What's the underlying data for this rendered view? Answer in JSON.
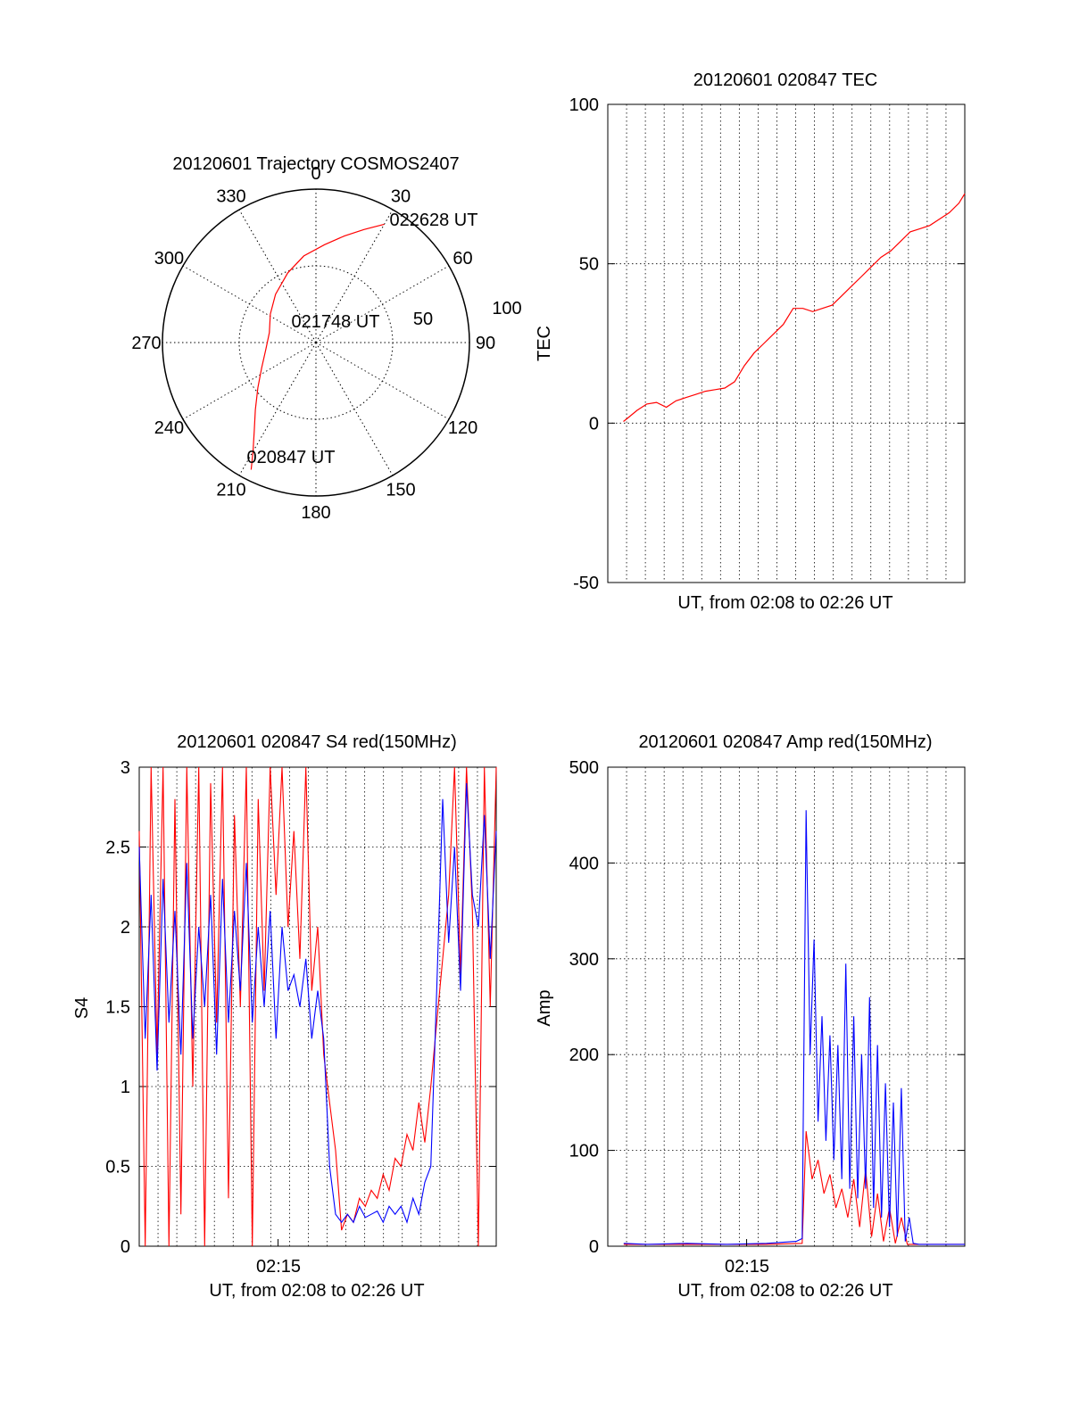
{
  "colors": {
    "red": "#ff0000",
    "blue": "#0000ff",
    "axis": "#000000",
    "grid": "#000000"
  },
  "chart_data": [
    {
      "id": "trajectory",
      "type": "polar",
      "title": "20120601 Trajectory COSMOS2407",
      "azimuth_labels": [
        "0",
        "30",
        "60",
        "90",
        "120",
        "150",
        "180",
        "210",
        "240",
        "270",
        "300",
        "330"
      ],
      "radial_labels": [
        "50",
        "100"
      ],
      "radial_max": 100,
      "start_label": "020847 UT",
      "mid_label": "021748 UT",
      "end_label": "022628 UT",
      "track": [
        {
          "az": 207,
          "r": 93
        },
        {
          "az": 210,
          "r": 82
        },
        {
          "az": 215,
          "r": 70
        },
        {
          "az": 222,
          "r": 59
        },
        {
          "az": 232,
          "r": 48
        },
        {
          "az": 245,
          "r": 39
        },
        {
          "az": 262,
          "r": 33
        },
        {
          "az": 282,
          "r": 31
        },
        {
          "az": 302,
          "r": 35
        },
        {
          "az": 320,
          "r": 41
        },
        {
          "az": 338,
          "r": 49
        },
        {
          "az": 352,
          "r": 57
        },
        {
          "az": 5,
          "r": 64
        },
        {
          "az": 15,
          "r": 72
        },
        {
          "az": 23,
          "r": 80
        },
        {
          "az": 30,
          "r": 89
        }
      ],
      "series_color": "#ff0000"
    },
    {
      "id": "tec",
      "type": "line",
      "title": "20120601 020847 TEC",
      "xlabel": "UT, from 02:08 to 02:26 UT",
      "ylabel": "TEC",
      "ylim": [
        -50,
        100
      ],
      "yticks": [
        "-50",
        "0",
        "50",
        "100"
      ],
      "xlim_min": [
        7.5,
        26
      ],
      "x_min_from_0208": [
        0.8,
        1.0,
        1.5,
        2.0,
        2.5,
        3.0,
        3.5,
        4.0,
        4.5,
        5.0,
        5.5,
        6.0,
        6.5,
        7.0,
        7.5,
        8.0,
        8.5,
        9.0,
        9.5,
        10.0,
        10.5,
        11.0,
        11.5,
        12.0,
        12.5,
        13.0,
        13.5,
        14.0,
        14.5,
        15.0,
        15.5,
        16.0,
        16.5,
        17.0,
        17.5,
        18.0,
        18.3
      ],
      "y": [
        0.5,
        1.5,
        4,
        6,
        6.5,
        5,
        7,
        8,
        9,
        10,
        10.5,
        11,
        13,
        18,
        22,
        25,
        28,
        31,
        36,
        36,
        35,
        36,
        37,
        40,
        43,
        46,
        49,
        52,
        54,
        57,
        60,
        61,
        62,
        64,
        66,
        69,
        72
      ],
      "series_color": "#ff0000"
    },
    {
      "id": "s4",
      "type": "line",
      "title": "20120601 020847 S4 red(150MHz)",
      "xlabel": "UT, from 02:08 to 02:26 UT",
      "ylabel": "S4",
      "ylim": [
        0,
        3
      ],
      "yticks": [
        "0",
        "0.5",
        "1",
        "1.5",
        "2",
        "2.5",
        "3"
      ],
      "xtick_label": "02:15",
      "xtick_min": 7.0,
      "xlim_min": [
        0,
        18
      ],
      "series": [
        {
          "color": "#ff0000",
          "x": [
            0.0,
            0.3,
            0.6,
            0.9,
            1.2,
            1.5,
            1.8,
            2.1,
            2.4,
            2.7,
            3.0,
            3.3,
            3.6,
            3.9,
            4.2,
            4.5,
            4.8,
            5.1,
            5.4,
            5.7,
            6.0,
            6.3,
            6.6,
            6.9,
            7.2,
            7.5,
            7.8,
            8.1,
            8.4,
            8.7,
            9.0,
            9.3,
            9.6,
            9.9,
            10.2,
            10.5,
            10.8,
            11.1,
            11.4,
            11.7,
            12.0,
            12.3,
            12.6,
            12.9,
            13.2,
            13.5,
            13.8,
            14.1,
            14.4,
            14.7,
            15.0,
            15.3,
            15.6,
            15.9,
            16.2,
            16.5,
            16.8,
            17.1,
            17.4,
            17.7,
            18.0
          ],
          "values": [
            2.6,
            0.0,
            3.0,
            1.2,
            3.0,
            0.0,
            2.8,
            0.2,
            3.0,
            1.0,
            3.0,
            0.0,
            2.9,
            1.4,
            3.0,
            0.3,
            2.7,
            1.5,
            3.0,
            0.0,
            2.8,
            1.6,
            3.0,
            2.2,
            3.0,
            2.0,
            2.6,
            1.8,
            3.0,
            1.6,
            2.0,
            1.2,
            0.9,
            0.6,
            0.1,
            0.2,
            0.15,
            0.3,
            0.25,
            0.35,
            0.3,
            0.45,
            0.35,
            0.55,
            0.5,
            0.7,
            0.6,
            0.9,
            0.65,
            1.0,
            1.4,
            1.8,
            2.2,
            3.0,
            1.7,
            3.0,
            2.1,
            0.0,
            3.0,
            1.5,
            3.0
          ]
        },
        {
          "color": "#0000ff",
          "x": [
            0.0,
            0.3,
            0.6,
            0.9,
            1.2,
            1.5,
            1.8,
            2.1,
            2.4,
            2.7,
            3.0,
            3.3,
            3.6,
            3.9,
            4.2,
            4.5,
            4.8,
            5.1,
            5.4,
            5.7,
            6.0,
            6.3,
            6.6,
            6.9,
            7.2,
            7.5,
            7.8,
            8.1,
            8.4,
            8.7,
            9.0,
            9.3,
            9.6,
            9.9,
            10.2,
            10.5,
            10.8,
            11.1,
            11.4,
            11.7,
            12.0,
            12.3,
            12.6,
            12.9,
            13.2,
            13.5,
            13.8,
            14.1,
            14.4,
            14.7,
            15.0,
            15.3,
            15.6,
            15.9,
            16.2,
            16.5,
            16.8,
            17.1,
            17.4,
            17.7,
            18.0
          ],
          "values": [
            2.5,
            1.3,
            2.2,
            1.1,
            2.3,
            1.4,
            2.1,
            1.2,
            2.4,
            1.3,
            2.0,
            1.5,
            2.2,
            1.2,
            2.3,
            1.4,
            2.1,
            1.6,
            2.4,
            1.4,
            2.0,
            1.5,
            2.1,
            1.3,
            2.0,
            1.6,
            1.7,
            1.5,
            1.8,
            1.3,
            1.6,
            1.3,
            0.5,
            0.2,
            0.15,
            0.2,
            0.15,
            0.25,
            0.18,
            0.2,
            0.22,
            0.15,
            0.25,
            0.2,
            0.25,
            0.15,
            0.3,
            0.2,
            0.4,
            0.5,
            1.6,
            2.8,
            1.9,
            2.5,
            1.6,
            2.9,
            2.2,
            2.0,
            2.7,
            1.8,
            2.6
          ]
        }
      ]
    },
    {
      "id": "amp",
      "type": "line",
      "title": "20120601 020847 Amp red(150MHz)",
      "xlabel": "UT, from 02:08 to 02:26 UT",
      "ylabel": "Amp",
      "ylim": [
        0,
        500
      ],
      "yticks": [
        "0",
        "100",
        "200",
        "300",
        "400",
        "500"
      ],
      "xtick_label": "02:15",
      "xtick_min": 7.0,
      "xlim_min": [
        0,
        18
      ],
      "series": [
        {
          "color": "#ff0000",
          "x": [
            0.8,
            2.0,
            4.0,
            6.0,
            8.0,
            9.8,
            10.0,
            10.3,
            10.6,
            10.9,
            11.2,
            11.5,
            11.8,
            12.1,
            12.4,
            12.7,
            13.0,
            13.3,
            13.6,
            13.9,
            14.2,
            14.5,
            14.8,
            15.1,
            15.4,
            15.7,
            16.0,
            17.0,
            18.0
          ],
          "values": [
            2,
            2,
            2,
            2,
            2,
            3,
            120,
            70,
            90,
            55,
            75,
            40,
            60,
            30,
            70,
            20,
            80,
            10,
            55,
            5,
            40,
            3,
            30,
            2,
            2,
            2,
            2,
            2,
            2
          ]
        },
        {
          "color": "#0000ff",
          "x": [
            0.8,
            2.0,
            4.0,
            6.0,
            8.0,
            9.5,
            9.8,
            10.0,
            10.2,
            10.4,
            10.6,
            10.8,
            11.0,
            11.2,
            11.4,
            11.6,
            11.8,
            12.0,
            12.2,
            12.4,
            12.6,
            12.8,
            13.0,
            13.2,
            13.4,
            13.6,
            13.8,
            14.0,
            14.2,
            14.4,
            14.6,
            14.8,
            15.0,
            15.2,
            15.4,
            15.7,
            16.0,
            17.0,
            18.0
          ],
          "values": [
            3,
            2,
            3,
            2,
            3,
            5,
            8,
            455,
            200,
            320,
            130,
            240,
            110,
            220,
            90,
            210,
            70,
            295,
            60,
            240,
            50,
            200,
            60,
            260,
            40,
            210,
            30,
            170,
            20,
            150,
            10,
            165,
            5,
            30,
            3,
            2,
            2,
            2,
            2
          ]
        }
      ]
    }
  ]
}
